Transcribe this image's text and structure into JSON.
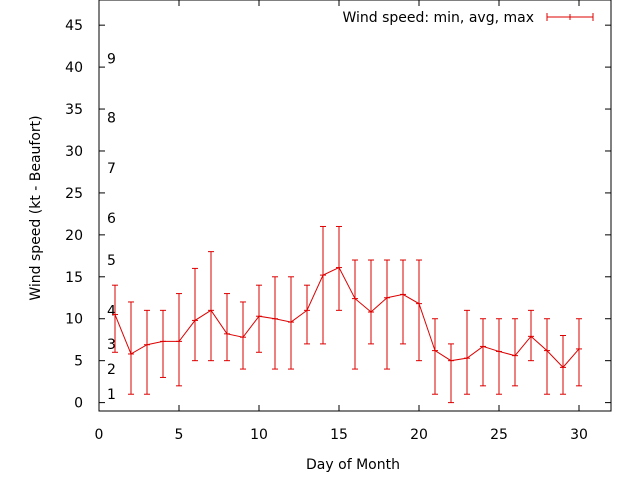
{
  "chart_data": {
    "type": "line",
    "title": "",
    "xlabel": "Day of Month",
    "ylabel": "Wind speed (kt - Beaufort)",
    "xlim": [
      0,
      32
    ],
    "ylim": [
      -1,
      48
    ],
    "xticks": [
      0,
      5,
      10,
      15,
      20,
      25,
      30
    ],
    "xtick_labels": [
      "0",
      "5",
      "10",
      "15",
      "20",
      "25",
      "30"
    ],
    "yticks": [
      0,
      5,
      10,
      15,
      20,
      25,
      30,
      35,
      40,
      45
    ],
    "ytick_labels": [
      "0",
      "5",
      "10",
      "15",
      "20",
      "25",
      "30",
      "35",
      "40",
      "45"
    ],
    "beaufort_labels": [
      {
        "label": "1",
        "kt": 1
      },
      {
        "label": "2",
        "kt": 4
      },
      {
        "label": "3",
        "kt": 7
      },
      {
        "label": "4",
        "kt": 11
      },
      {
        "label": "5",
        "kt": 17
      },
      {
        "label": "6",
        "kt": 22
      },
      {
        "label": "7",
        "kt": 28
      },
      {
        "label": "8",
        "kt": 34
      },
      {
        "label": "9",
        "kt": 41
      }
    ],
    "legend": {
      "label": "Wind speed: min, avg, max",
      "position": "top-right"
    },
    "grid": false,
    "series": [
      {
        "name": "Wind speed: min, avg, max",
        "color": "#dd0000",
        "x": [
          1,
          2,
          3,
          4,
          5,
          6,
          7,
          8,
          9,
          10,
          11,
          12,
          13,
          14,
          15,
          16,
          17,
          18,
          19,
          20,
          21,
          22,
          23,
          24,
          25,
          26,
          27,
          28,
          29,
          30
        ],
        "avg": [
          10.5,
          5.8,
          6.9,
          7.3,
          7.3,
          9.8,
          11.0,
          8.2,
          7.8,
          10.3,
          10.0,
          9.6,
          11.0,
          15.2,
          16.1,
          12.4,
          10.8,
          12.5,
          12.9,
          11.8,
          6.2,
          5.0,
          5.3,
          6.7,
          6.1,
          5.6,
          7.9,
          6.2,
          4.2,
          6.4
        ],
        "min": [
          6,
          1,
          1,
          3,
          2,
          5,
          5,
          5,
          4,
          6,
          4,
          4,
          7,
          7,
          11,
          4,
          7,
          4,
          7,
          5,
          1,
          0,
          1,
          2,
          1,
          2,
          5,
          1,
          1,
          2
        ],
        "max": [
          14,
          12,
          11,
          11,
          13,
          16,
          18,
          13,
          12,
          14,
          15,
          15,
          14,
          21,
          21,
          17,
          17,
          17,
          17,
          17,
          10,
          7,
          11,
          10,
          10,
          10,
          11,
          10,
          8,
          10
        ]
      }
    ]
  }
}
